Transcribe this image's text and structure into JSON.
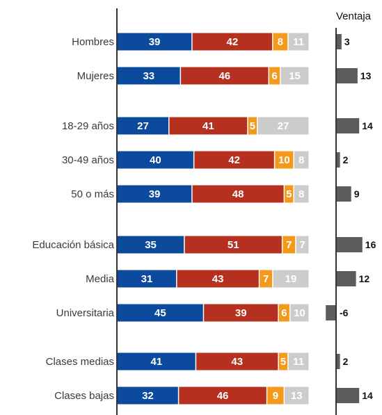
{
  "chart_data": {
    "type": "bar",
    "stacked": true,
    "orientation": "horizontal",
    "categories": [
      "Hombres",
      "Mujeres",
      "18-29 años",
      "30-49 años",
      "50 o más",
      "Educación básica",
      "Media",
      "Universitaria",
      "Clases medias",
      "Clases bajas"
    ],
    "groups": [
      [
        0,
        1
      ],
      [
        2,
        3,
        4
      ],
      [
        5,
        6,
        7
      ],
      [
        8,
        9
      ]
    ],
    "series": [
      {
        "color": "#0b4a9c",
        "values": [
          39,
          33,
          27,
          40,
          39,
          35,
          31,
          45,
          41,
          32
        ]
      },
      {
        "color": "#b5301f",
        "values": [
          42,
          46,
          41,
          42,
          48,
          51,
          43,
          39,
          43,
          46
        ]
      },
      {
        "color": "#f39a1c",
        "values": [
          8,
          6,
          5,
          10,
          5,
          7,
          7,
          6,
          5,
          9
        ]
      },
      {
        "color": "#cccccc",
        "values": [
          11,
          15,
          27,
          8,
          8,
          7,
          19,
          10,
          11,
          13
        ]
      }
    ],
    "advantage": {
      "title": "Ventaja",
      "color": "#5c5c5c",
      "values": [
        3,
        13,
        14,
        2,
        9,
        16,
        12,
        -6,
        2,
        14
      ]
    }
  }
}
